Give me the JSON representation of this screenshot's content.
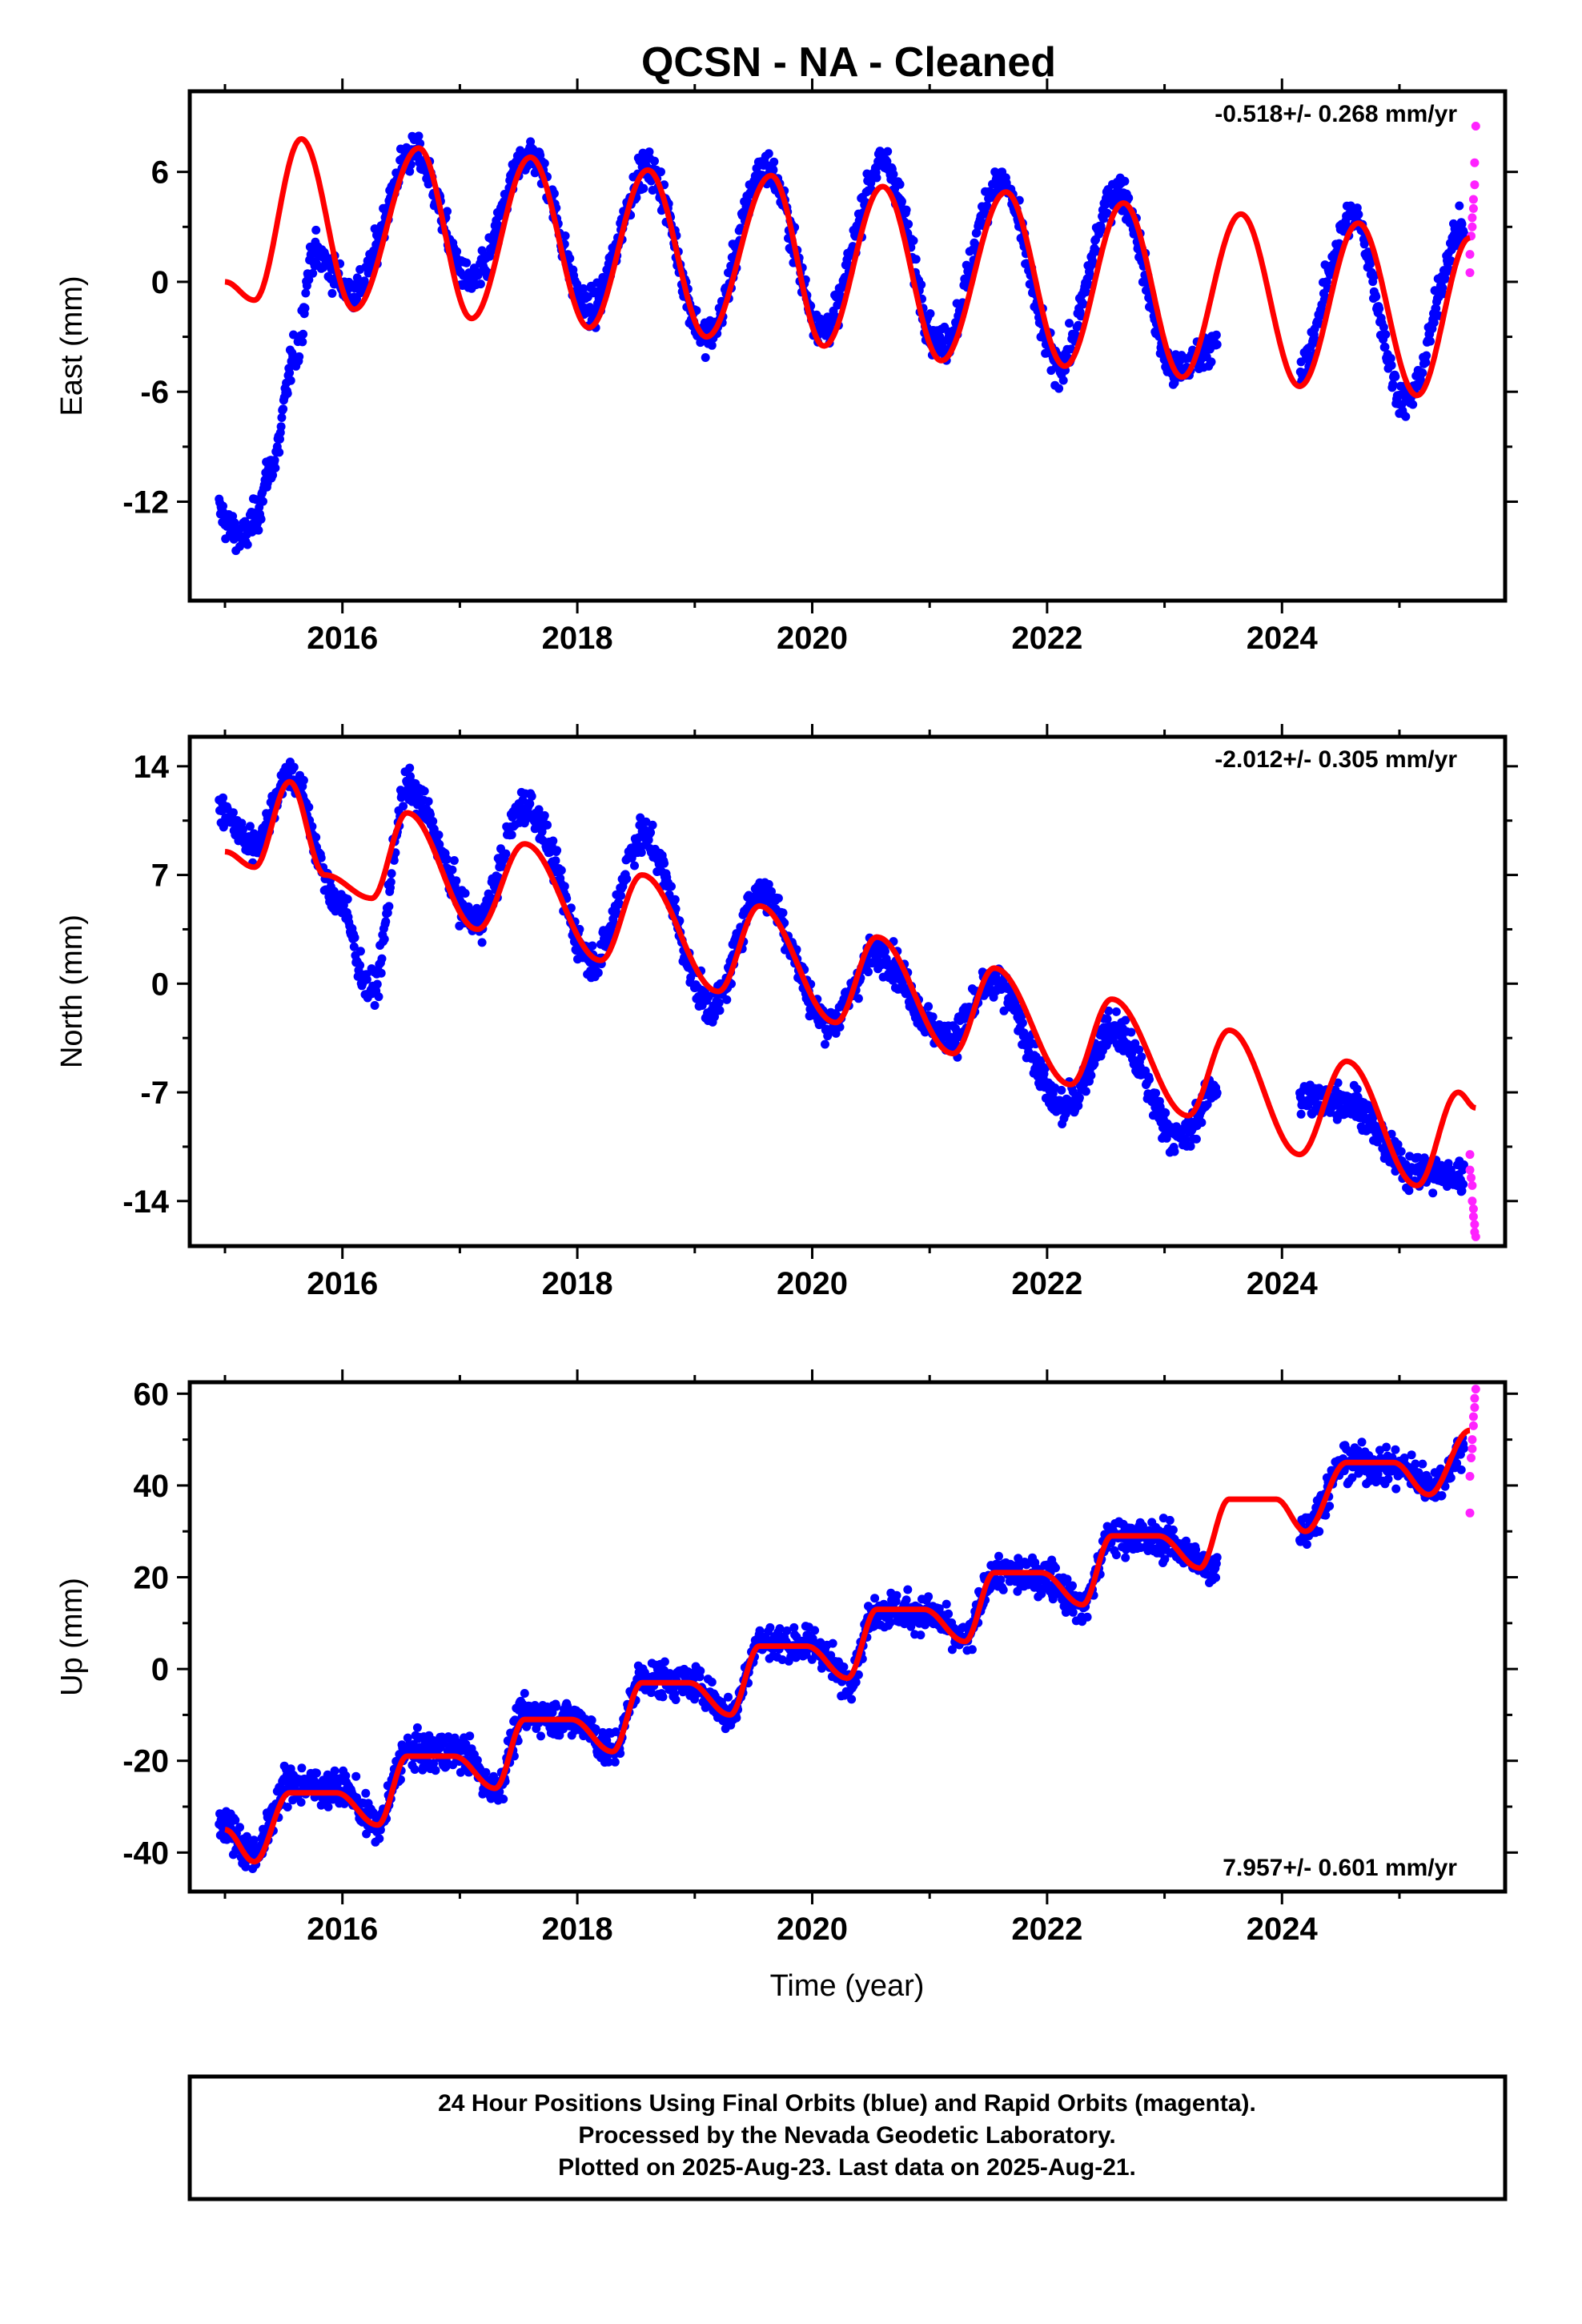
{
  "chart_data": {
    "type": "scatter",
    "title": "QCSN  - NA - Cleaned",
    "xlabel": "Time (year)",
    "xlim": [
      2014.7,
      2025.9
    ],
    "x_ticks": [
      "2016",
      "2018",
      "2020",
      "2022",
      "2024"
    ],
    "colors": {
      "final_orbits": "#0000ff",
      "rapid_orbits": "#ff22ff",
      "model": "#ff0000",
      "frame": "#000000"
    },
    "panels": [
      {
        "ylabel": "East (mm)",
        "ylim": [
          -17.4,
          10.4
        ],
        "y_ticks": [
          "6",
          "0",
          "-6",
          "-12"
        ],
        "rate": "-0.518+/- 0.268 mm/yr",
        "rate_position": "top-right",
        "model": {
          "x": [
            2015.0,
            2015.25,
            2015.65,
            2016.1,
            2016.65,
            2017.1,
            2017.6,
            2018.1,
            2018.6,
            2019.1,
            2019.65,
            2020.1,
            2020.6,
            2021.1,
            2021.65,
            2022.15,
            2022.65,
            2023.15,
            2023.65,
            2024.15,
            2024.65,
            2025.15,
            2025.6
          ],
          "y": [
            0.0,
            -1.0,
            7.8,
            -1.5,
            7.3,
            -2.0,
            6.8,
            -2.5,
            6.1,
            -3.0,
            5.8,
            -3.5,
            5.2,
            -4.3,
            4.9,
            -4.6,
            4.3,
            -5.2,
            3.7,
            -5.7,
            3.2,
            -6.2,
            2.4
          ]
        },
        "final_trend": {
          "x": [
            2014.95,
            2015.05,
            2015.15,
            2015.25,
            2015.4,
            2015.6,
            2015.75,
            2016.1,
            2016.6,
            2017.1,
            2017.6,
            2018.1,
            2018.6,
            2019.1,
            2019.6,
            2020.1,
            2020.6,
            2021.1,
            2021.6,
            2022.1,
            2022.6,
            2023.1,
            2023.4,
            2024.1,
            2024.6,
            2025.05,
            2025.55
          ],
          "y": [
            -12.5,
            -13.5,
            -14.0,
            -13.0,
            -10.0,
            -4.0,
            1.5,
            -0.5,
            7.0,
            0.0,
            7.0,
            -1.5,
            6.2,
            -3.0,
            6.2,
            -2.5,
            6.5,
            -3.5,
            5.5,
            -4.5,
            5.0,
            -5.0,
            -3.5,
            -5.5,
            3.5,
            -6.5,
            3.0
          ]
        },
        "rapid": {
          "x": [
            2025.6,
            2025.6,
            2025.61,
            2025.62,
            2025.62,
            2025.63,
            2025.63,
            2025.64,
            2025.64,
            2025.65
          ],
          "y": [
            0.5,
            1.5,
            2.5,
            3.0,
            3.5,
            4.0,
            4.5,
            5.3,
            6.5,
            8.5
          ]
        }
      },
      {
        "ylabel": "North (mm)",
        "ylim": [
          -16.9,
          15.9
        ],
        "y_ticks": [
          "14",
          "7",
          "0",
          "-7",
          "-14"
        ],
        "rate": "-2.012+/- 0.305 mm/yr",
        "rate_position": "top-right",
        "model": {
          "x": [
            2015.0,
            2015.25,
            2015.55,
            2015.85,
            2016.25,
            2016.55,
            2017.15,
            2017.55,
            2018.2,
            2018.55,
            2019.2,
            2019.55,
            2020.2,
            2020.55,
            2021.2,
            2021.55,
            2022.2,
            2022.55,
            2023.2,
            2023.55,
            2024.15,
            2024.55,
            2025.15,
            2025.5,
            2025.65
          ],
          "y": [
            8.5,
            7.5,
            13.0,
            7.0,
            5.5,
            11.0,
            3.5,
            9.0,
            1.5,
            7.0,
            -0.5,
            5.0,
            -2.5,
            3.0,
            -4.5,
            1.0,
            -6.5,
            -1.0,
            -8.5,
            -3.0,
            -11.0,
            -5.0,
            -13.0,
            -7.0,
            -8.0
          ]
        },
        "final_trend": {
          "x": [
            2014.95,
            2015.25,
            2015.55,
            2015.95,
            2016.25,
            2016.55,
            2017.15,
            2017.55,
            2018.15,
            2018.55,
            2019.15,
            2019.55,
            2020.15,
            2020.55,
            2021.15,
            2021.55,
            2022.15,
            2022.55,
            2023.15,
            2023.45,
            2024.2,
            2024.55,
            2025.1,
            2025.55
          ],
          "y": [
            11.0,
            9.0,
            13.5,
            5.5,
            -0.5,
            12.5,
            4.0,
            11.5,
            1.5,
            9.5,
            -1.5,
            6.0,
            -2.5,
            2.0,
            -3.5,
            0.0,
            -8.0,
            -3.0,
            -10.0,
            -6.5,
            -7.5,
            -7.5,
            -12.0,
            -12.5
          ]
        },
        "rapid": {
          "x": [
            2025.6,
            2025.6,
            2025.61,
            2025.62,
            2025.62,
            2025.63,
            2025.63,
            2025.64,
            2025.64,
            2025.65
          ],
          "y": [
            -11.0,
            -12.0,
            -12.5,
            -13.0,
            -14.0,
            -14.5,
            -15.0,
            -15.5,
            -16.0,
            -16.3
          ]
        }
      },
      {
        "ylabel": "Up (mm)",
        "ylim": [
          -48.5,
          62.5
        ],
        "y_ticks": [
          "60",
          "40",
          "20",
          "0",
          "-20",
          "-40"
        ],
        "rate": "7.957+/- 0.601 mm/yr",
        "rate_position": "bottom-right",
        "model": {
          "x": [
            2015.0,
            2015.25,
            2015.55,
            2015.95,
            2016.3,
            2016.55,
            2016.95,
            2017.3,
            2017.55,
            2017.95,
            2018.3,
            2018.55,
            2018.95,
            2019.3,
            2019.55,
            2019.95,
            2020.3,
            2020.55,
            2020.95,
            2021.3,
            2021.55,
            2021.95,
            2022.3,
            2022.55,
            2022.95,
            2023.3,
            2023.55,
            2023.95,
            2024.2,
            2024.55,
            2024.95,
            2025.25,
            2025.6
          ],
          "y": [
            -35.0,
            -42.0,
            -27.0,
            -27.0,
            -34.0,
            -19.0,
            -19.0,
            -26.0,
            -11.0,
            -11.0,
            -18.0,
            -3.0,
            -3.0,
            -10.0,
            5.0,
            5.0,
            -2.0,
            13.0,
            13.0,
            6.0,
            21.0,
            21.0,
            14.0,
            29.0,
            29.0,
            22.0,
            37.0,
            37.0,
            30.0,
            45.0,
            45.0,
            38.0,
            52.0
          ]
        },
        "final_trend": {
          "x": [
            2014.95,
            2015.25,
            2015.55,
            2016.0,
            2016.3,
            2016.55,
            2017.0,
            2017.3,
            2017.55,
            2018.0,
            2018.3,
            2018.55,
            2019.0,
            2019.3,
            2019.55,
            2020.0,
            2020.3,
            2020.55,
            2021.0,
            2021.3,
            2021.55,
            2022.0,
            2022.3,
            2022.55,
            2023.0,
            2023.4,
            2024.2,
            2024.55,
            2025.0,
            2025.3,
            2025.55
          ],
          "y": [
            -33.0,
            -40.0,
            -25.0,
            -26.0,
            -34.0,
            -18.0,
            -18.0,
            -26.0,
            -10.0,
            -11.0,
            -18.0,
            -2.0,
            -3.0,
            -10.0,
            6.0,
            5.0,
            -2.0,
            13.0,
            12.0,
            6.0,
            21.0,
            20.0,
            14.0,
            29.0,
            28.0,
            22.0,
            31.0,
            45.0,
            44.0,
            40.0,
            48.0
          ]
        },
        "rapid": {
          "x": [
            2025.6,
            2025.6,
            2025.61,
            2025.62,
            2025.62,
            2025.63,
            2025.63,
            2025.64,
            2025.64,
            2025.65
          ],
          "y": [
            34.0,
            42.0,
            46.0,
            48.0,
            50.0,
            53.0,
            55.0,
            57.0,
            59.0,
            61.0
          ]
        }
      }
    ],
    "gaps": [
      [
        2023.45,
        2024.15
      ]
    ]
  },
  "caption": {
    "line1": "24 Hour Positions Using Final Orbits (blue) and Rapid Orbits (magenta).",
    "line2": "Processed by the Nevada Geodetic Laboratory.",
    "line3": "Plotted on 2025-Aug-23. Last data on 2025-Aug-21."
  }
}
